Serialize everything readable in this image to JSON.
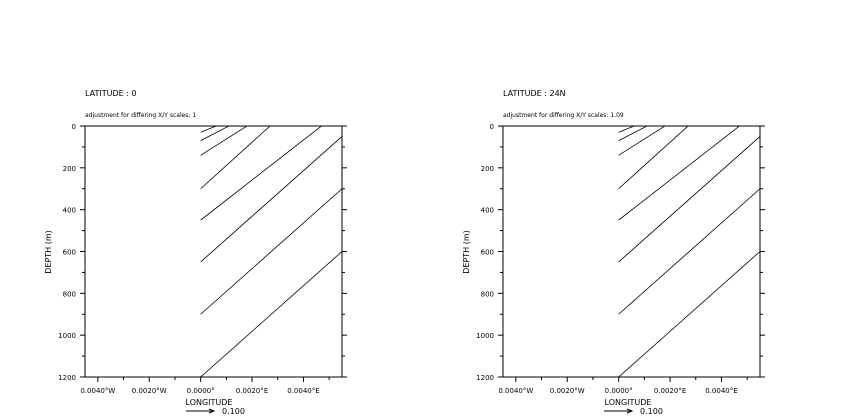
{
  "chart_data": [
    {
      "type": "line",
      "title": "LATITUDE : 0",
      "subtitle": "adjustment for differing X/Y scales: 1",
      "xlabel": "LONGITUDE",
      "ylabel": "DEPTH (m)",
      "xticks": [
        "0.0040°W",
        "0.0020°W",
        "0.0000°",
        "0.0020°E",
        "0.0040°E"
      ],
      "xtick_values": [
        -0.004,
        -0.002,
        0.0,
        0.002,
        0.004
      ],
      "xlim": [
        -0.0045,
        0.0055
      ],
      "yticks": [
        "0",
        "200",
        "400",
        "600",
        "800",
        "1000",
        "1200"
      ],
      "ytick_values": [
        0,
        200,
        400,
        600,
        800,
        1000,
        1200
      ],
      "ylim": [
        1200,
        0
      ],
      "reference_vector_label": "0.100",
      "series": [
        {
          "x": [
            0.0,
            0.0006
          ],
          "y": [
            30,
            0
          ]
        },
        {
          "x": [
            0.0,
            0.0011
          ],
          "y": [
            70,
            0
          ]
        },
        {
          "x": [
            0.0,
            0.0018
          ],
          "y": [
            140,
            0
          ]
        },
        {
          "x": [
            0.0,
            0.0027
          ],
          "y": [
            300,
            0
          ]
        },
        {
          "x": [
            0.0,
            0.0047
          ],
          "y": [
            450,
            0
          ]
        },
        {
          "x": [
            0.0,
            0.0055
          ],
          "y": [
            650,
            50
          ]
        },
        {
          "x": [
            0.0,
            0.0055
          ],
          "y": [
            900,
            300
          ]
        },
        {
          "x": [
            0.0,
            0.0055
          ],
          "y": [
            1200,
            600
          ]
        }
      ]
    },
    {
      "type": "line",
      "title": "LATITUDE : 24N",
      "subtitle": "adjustment for differing X/Y scales: 1.09",
      "xlabel": "LONGITUDE",
      "ylabel": "DEPTH (m)",
      "xticks": [
        "0.0040°W",
        "0.0020°W",
        "0.0000°",
        "0.0020°E",
        "0.0040°E"
      ],
      "xtick_values": [
        -0.004,
        -0.002,
        0.0,
        0.002,
        0.004
      ],
      "xlim": [
        -0.0045,
        0.0055
      ],
      "yticks": [
        "0",
        "200",
        "400",
        "600",
        "800",
        "1000",
        "1200"
      ],
      "ytick_values": [
        0,
        200,
        400,
        600,
        800,
        1000,
        1200
      ],
      "ylim": [
        1200,
        0
      ],
      "reference_vector_label": "0.100",
      "series": [
        {
          "x": [
            0.0,
            0.0006
          ],
          "y": [
            30,
            0
          ]
        },
        {
          "x": [
            0.0,
            0.0011
          ],
          "y": [
            70,
            0
          ]
        },
        {
          "x": [
            0.0,
            0.0018
          ],
          "y": [
            140,
            0
          ]
        },
        {
          "x": [
            0.0,
            0.0027
          ],
          "y": [
            300,
            0
          ]
        },
        {
          "x": [
            0.0,
            0.0047
          ],
          "y": [
            450,
            0
          ]
        },
        {
          "x": [
            0.0,
            0.0055
          ],
          "y": [
            650,
            50
          ]
        },
        {
          "x": [
            0.0,
            0.0055
          ],
          "y": [
            900,
            300
          ]
        },
        {
          "x": [
            0.0,
            0.0055
          ],
          "y": [
            1200,
            600
          ]
        }
      ]
    }
  ]
}
